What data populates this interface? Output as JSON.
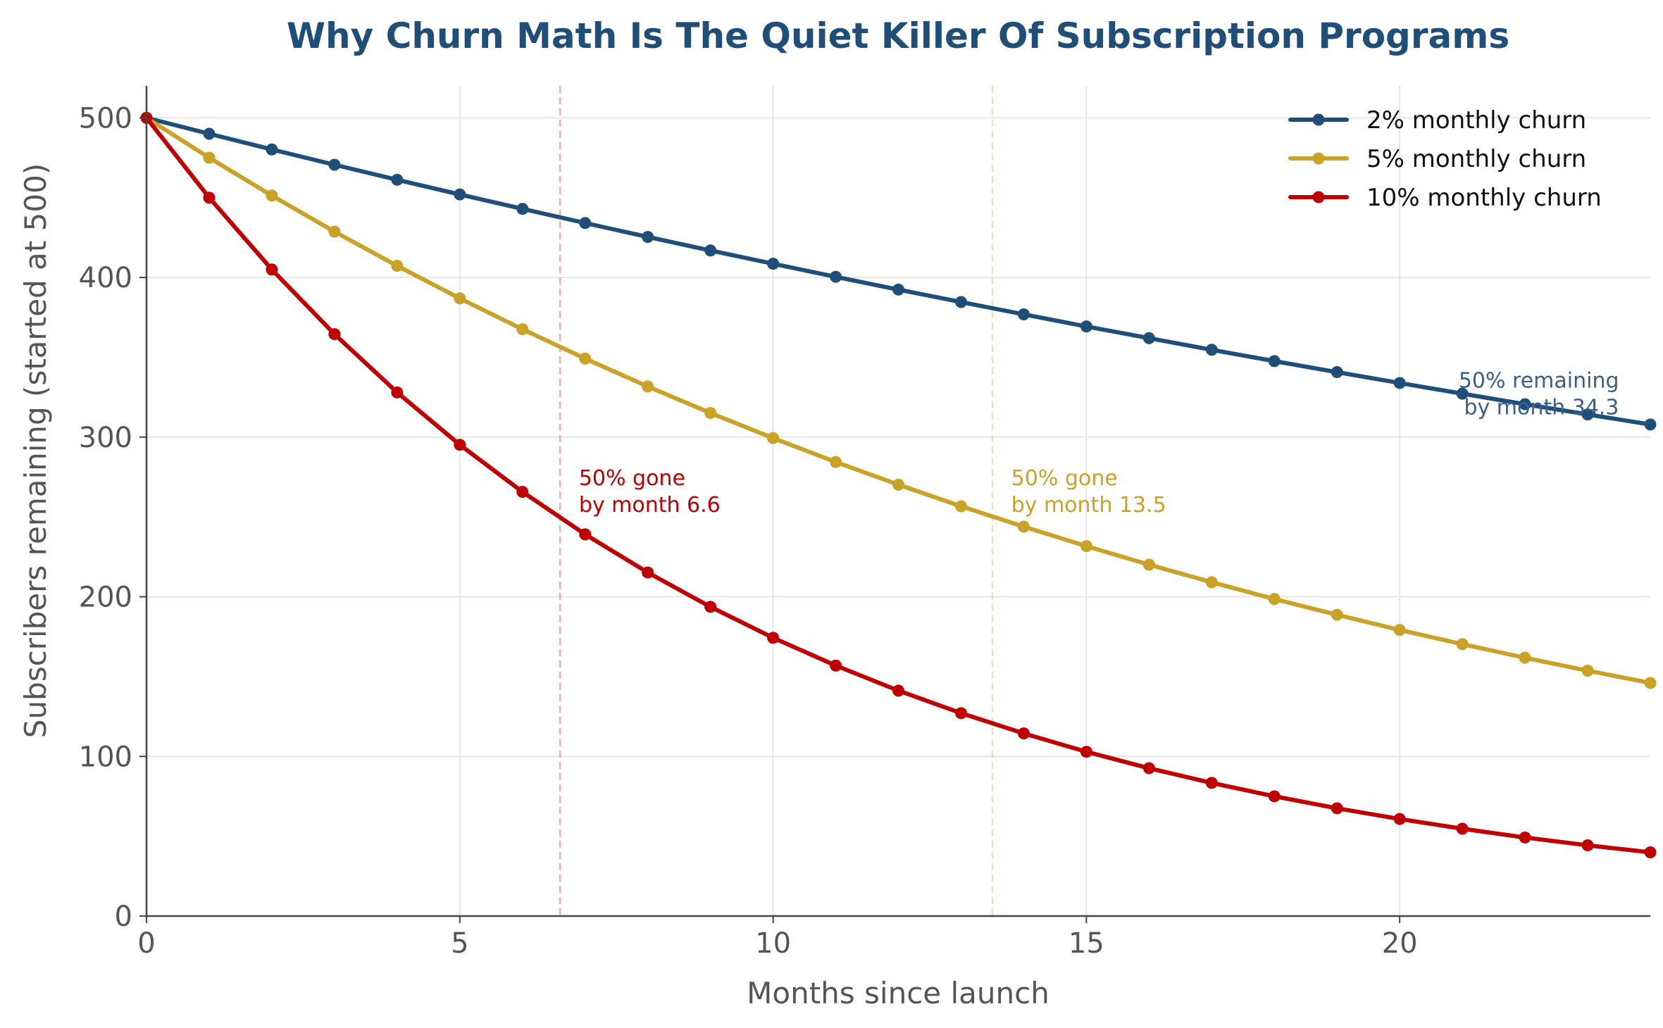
{
  "chart_data": {
    "type": "line",
    "title": "Why Churn Math Is The Quiet Killer Of Subscription Programs",
    "xlabel": "Months since launch",
    "ylabel": "Subscribers remaining (started at 500)",
    "xlim": [
      0,
      24
    ],
    "ylim": [
      0,
      520
    ],
    "xticks": [
      "0",
      "5",
      "10",
      "15",
      "20"
    ],
    "yticks": [
      "0",
      "100",
      "200",
      "300",
      "400",
      "500"
    ],
    "grid": true,
    "legend_position": "top-right",
    "x": [
      0,
      1,
      2,
      3,
      4,
      5,
      6,
      7,
      8,
      9,
      10,
      11,
      12,
      13,
      14,
      15,
      16,
      17,
      18,
      19,
      20,
      21,
      22,
      23,
      24
    ],
    "series": [
      {
        "name": "2% monthly churn",
        "color": "#1f4e79",
        "values": [
          500,
          490,
          480.2,
          470.6,
          461.2,
          452.0,
          443.0,
          434.1,
          425.4,
          416.9,
          408.6,
          400.4,
          392.4,
          384.6,
          376.9,
          369.3,
          362.0,
          354.7,
          347.6,
          340.7,
          333.9,
          327.2,
          320.6,
          314.2,
          307.9
        ]
      },
      {
        "name": "5% monthly churn",
        "color": "#c9a227",
        "values": [
          500,
          475,
          451.3,
          428.7,
          407.3,
          386.9,
          367.6,
          349.2,
          331.7,
          315.1,
          299.4,
          284.4,
          270.2,
          256.7,
          243.9,
          231.7,
          220.1,
          209.1,
          198.6,
          188.7,
          179.2,
          170.3,
          161.8,
          153.7,
          146.0
        ]
      },
      {
        "name": "10% monthly churn",
        "color": "#c00000",
        "values": [
          500,
          450,
          405,
          364.5,
          328.0,
          295.2,
          265.7,
          239.1,
          215.2,
          193.7,
          174.3,
          156.9,
          141.2,
          127.1,
          114.4,
          102.9,
          92.6,
          83.4,
          75.0,
          67.5,
          60.8,
          54.7,
          49.2,
          44.3,
          39.9
        ]
      }
    ],
    "reference_lines": [
      {
        "x": 6.6,
        "color": "#c00000"
      },
      {
        "x": 13.5,
        "color": "#c9a227"
      }
    ],
    "annotations": [
      {
        "lines": [
          "50% gone",
          "by month 6.6"
        ],
        "x": 6.9,
        "y": 270,
        "color": "#c00000",
        "anchor": "start"
      },
      {
        "lines": [
          "50% gone",
          "by month 13.5"
        ],
        "x": 13.8,
        "y": 270,
        "color": "#c9a227",
        "anchor": "start"
      },
      {
        "lines": [
          "50% remaining",
          "by month 34.3"
        ],
        "x": 23.5,
        "y": 331,
        "color": "#3a5f8a",
        "anchor": "end"
      }
    ],
    "colors": {
      "title": "#1f4e79",
      "axis": "#444444",
      "grid": "#e6e6e6"
    }
  }
}
